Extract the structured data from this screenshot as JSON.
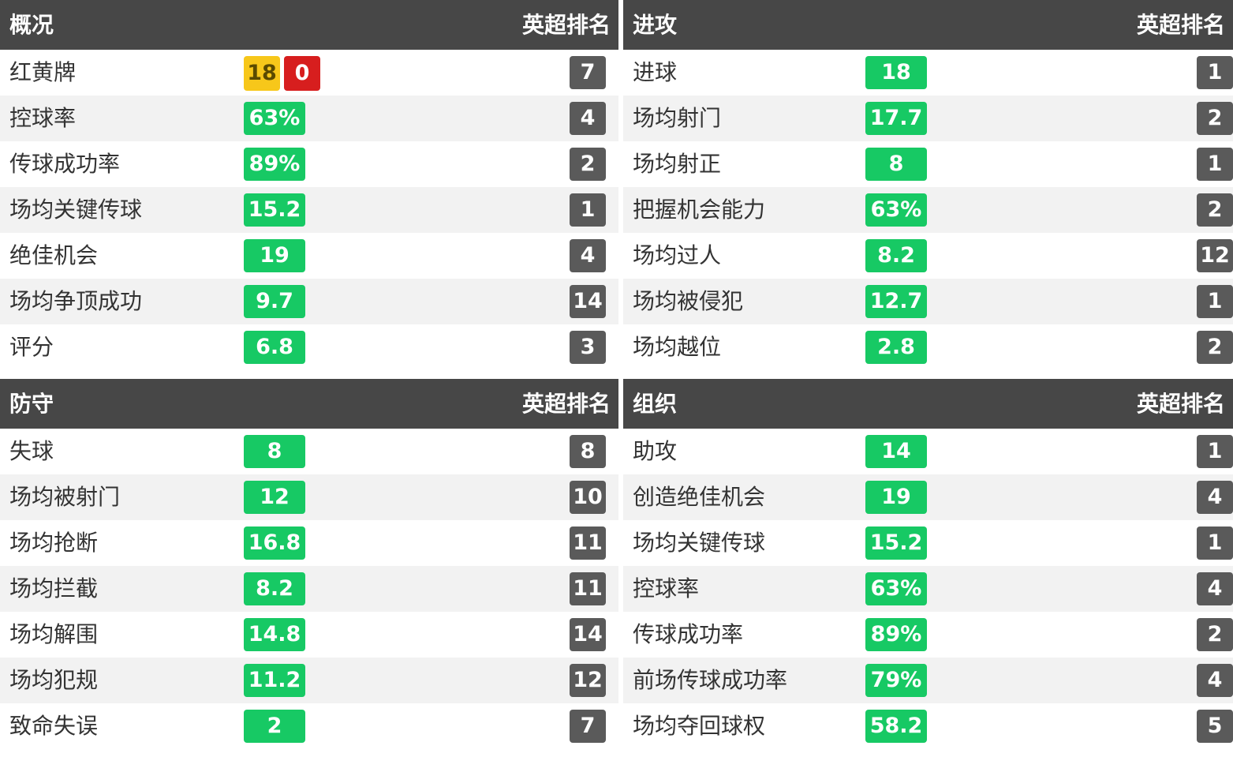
{
  "panels": [
    {
      "id": "overview",
      "title": "概况",
      "rank_label": "英超排名",
      "rows": [
        {
          "label": "红黄牌",
          "yellow": "18",
          "red": "0",
          "rank": "7"
        },
        {
          "label": "控球率",
          "value": "63%",
          "rank": "4"
        },
        {
          "label": "传球成功率",
          "value": "89%",
          "rank": "2"
        },
        {
          "label": "场均关键传球",
          "value": "15.2",
          "rank": "1"
        },
        {
          "label": "绝佳机会",
          "value": "19",
          "rank": "4"
        },
        {
          "label": "场均争顶成功",
          "value": "9.7",
          "rank": "14"
        },
        {
          "label": "评分",
          "value": "6.8",
          "rank": "3"
        }
      ]
    },
    {
      "id": "attack",
      "title": "进攻",
      "rank_label": "英超排名",
      "rows": [
        {
          "label": "进球",
          "value": "18",
          "rank": "1"
        },
        {
          "label": "场均射门",
          "value": "17.7",
          "rank": "2"
        },
        {
          "label": "场均射正",
          "value": "8",
          "rank": "1"
        },
        {
          "label": "把握机会能力",
          "value": "63%",
          "rank": "2"
        },
        {
          "label": "场均过人",
          "value": "8.2",
          "rank": "12"
        },
        {
          "label": "场均被侵犯",
          "value": "12.7",
          "rank": "1"
        },
        {
          "label": "场均越位",
          "value": "2.8",
          "rank": "2"
        }
      ]
    },
    {
      "id": "defense",
      "title": "防守",
      "rank_label": "英超排名",
      "rows": [
        {
          "label": "失球",
          "value": "8",
          "rank": "8"
        },
        {
          "label": "场均被射门",
          "value": "12",
          "rank": "10"
        },
        {
          "label": "场均抢断",
          "value": "16.8",
          "rank": "11"
        },
        {
          "label": "场均拦截",
          "value": "8.2",
          "rank": "11"
        },
        {
          "label": "场均解围",
          "value": "14.8",
          "rank": "14"
        },
        {
          "label": "场均犯规",
          "value": "11.2",
          "rank": "12"
        },
        {
          "label": "致命失误",
          "value": "2",
          "rank": "7"
        }
      ]
    },
    {
      "id": "org",
      "title": "组织",
      "rank_label": "英超排名",
      "rows": [
        {
          "label": "助攻",
          "value": "14",
          "rank": "1"
        },
        {
          "label": "创造绝佳机会",
          "value": "19",
          "rank": "4"
        },
        {
          "label": "场均关键传球",
          "value": "15.2",
          "rank": "1"
        },
        {
          "label": "控球率",
          "value": "63%",
          "rank": "4"
        },
        {
          "label": "传球成功率",
          "value": "89%",
          "rank": "2"
        },
        {
          "label": "前场传球成功率",
          "value": "79%",
          "rank": "4"
        },
        {
          "label": "场均夺回球权",
          "value": "58.2",
          "rank": "5"
        }
      ]
    }
  ],
  "colors": {
    "header_bg": "#474747",
    "value_badge": "#17c964",
    "rank_badge": "#5a5a5a",
    "yellow_card": "#f7c71a",
    "red_card": "#d71e1e"
  }
}
